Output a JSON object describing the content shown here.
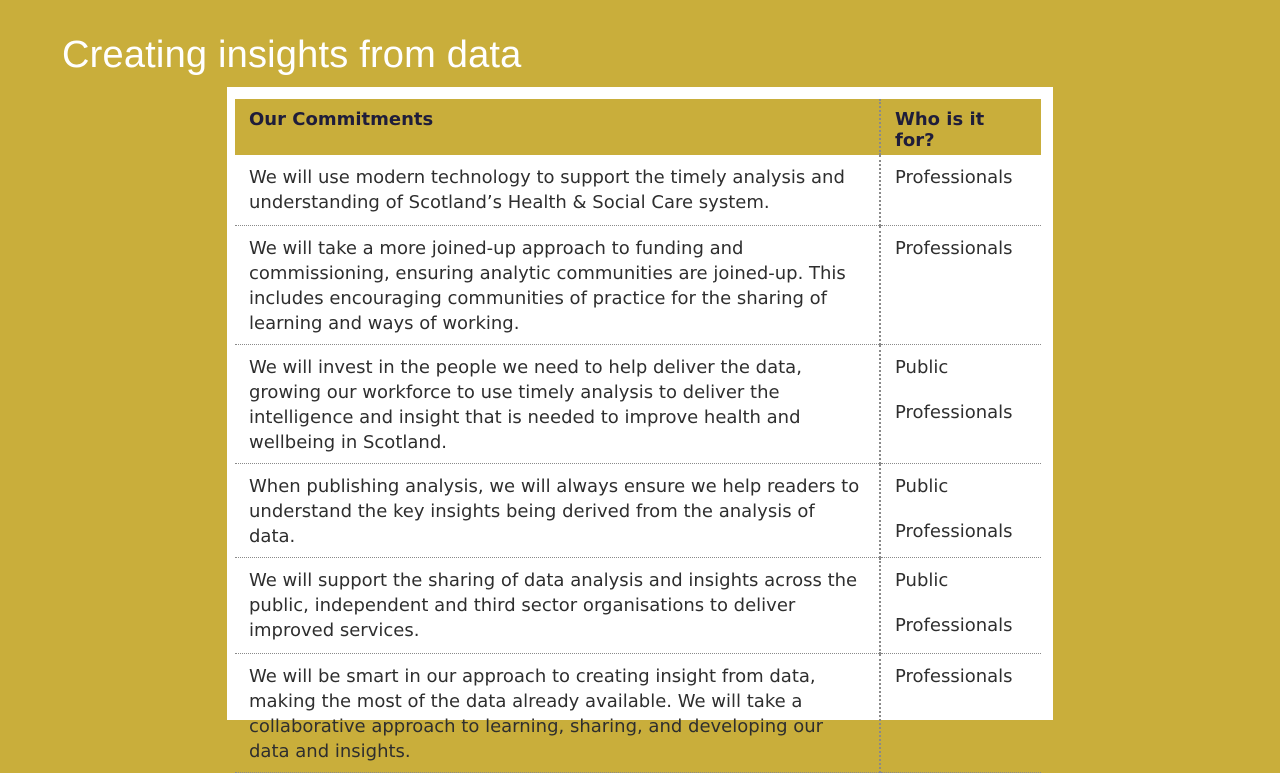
{
  "slide": {
    "title": "Creating insights from data"
  },
  "table": {
    "headers": {
      "commitments": "Our Commitments",
      "audience": "Who is it for?"
    },
    "rows": [
      {
        "commitment": "We will use modern technology to support the timely analysis and understanding of Scotland’s Health & Social Care system.",
        "audience": [
          "Professionals"
        ]
      },
      {
        "commitment": "We will take a more joined-up approach to funding and commissioning, ensuring analytic communities are joined-up. This includes encouraging communities of practice for the sharing of learning and ways of working.",
        "audience": [
          "Professionals"
        ]
      },
      {
        "commitment": "We will invest in the people we need to help deliver the data, growing our workforce to use timely analysis to deliver the intelligence and insight that is needed to improve health and wellbeing in Scotland.",
        "audience": [
          "Public",
          "Professionals"
        ]
      },
      {
        "commitment": "When publishing analysis, we will always ensure we help readers to understand the key insights being derived from the analysis of data.",
        "audience": [
          "Public",
          "Professionals"
        ]
      },
      {
        "commitment": "We will support the sharing of data analysis and insights across the public, independent and third sector organisations to deliver improved services.",
        "audience": [
          "Public",
          "Professionals"
        ]
      },
      {
        "commitment": "We will be smart in our approach to creating insight from data, making the most of the data already available. We will take a collaborative approach to learning, sharing, and developing our data and insights.",
        "audience": [
          "Professionals"
        ]
      }
    ]
  }
}
